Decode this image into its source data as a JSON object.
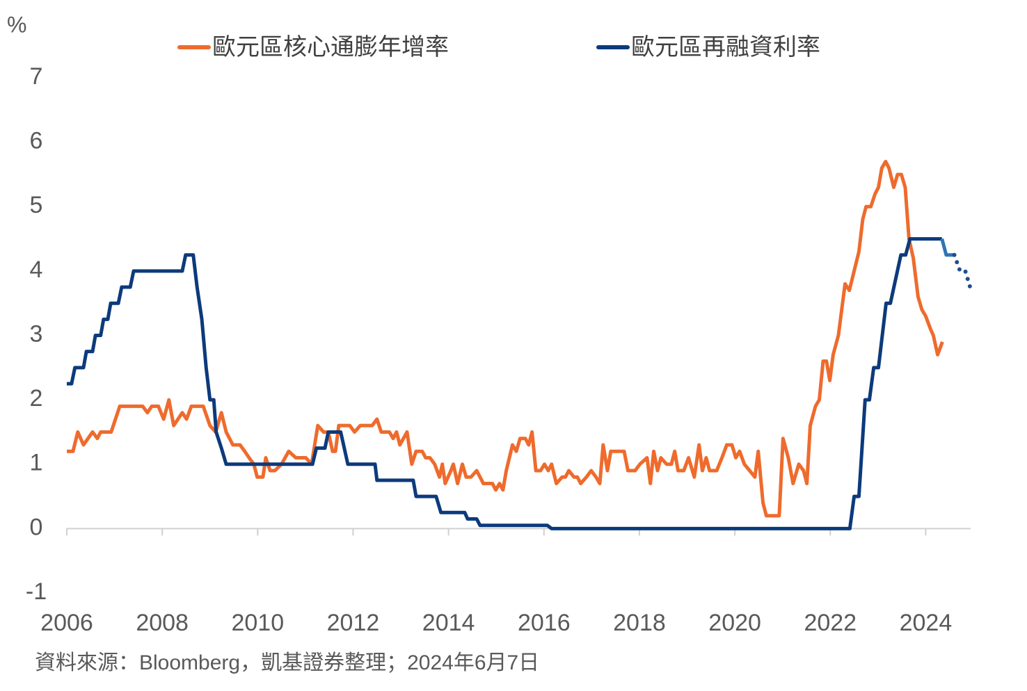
{
  "chart_data": {
    "type": "line",
    "y_unit": "%",
    "source": "資料來源：Bloomberg，凱基證券整理；2024年6月7日",
    "xlim": [
      2006,
      2025
    ],
    "xticks": [
      2006,
      2008,
      2010,
      2012,
      2014,
      2016,
      2018,
      2020,
      2022,
      2024
    ],
    "ylim": [
      -1,
      7
    ],
    "yticks": [
      -1,
      0,
      1,
      2,
      3,
      4,
      5,
      6,
      7
    ],
    "series": [
      {
        "name": "歐元區核心通膨年增率",
        "color": "#ee6b2d",
        "x": [
          2006.0,
          2006.13,
          2006.23,
          2006.35,
          2006.54,
          2006.64,
          2006.71,
          2006.93,
          2007.11,
          2007.59,
          2007.69,
          2007.78,
          2007.92,
          2008.03,
          2008.14,
          2008.24,
          2008.42,
          2008.51,
          2008.61,
          2008.86,
          2009.0,
          2009.12,
          2009.24,
          2009.34,
          2009.48,
          2009.63,
          2009.73,
          2009.82,
          2009.92,
          2009.99,
          2010.11,
          2010.17,
          2010.26,
          2010.36,
          2010.5,
          2010.65,
          2010.8,
          2011.01,
          2011.13,
          2011.26,
          2011.38,
          2011.48,
          2011.57,
          2011.63,
          2011.7,
          2011.93,
          2012.03,
          2012.15,
          2012.4,
          2012.5,
          2012.59,
          2012.76,
          2012.84,
          2012.91,
          2012.98,
          2013.13,
          2013.23,
          2013.32,
          2013.45,
          2013.52,
          2013.61,
          2013.71,
          2013.81,
          2013.87,
          2013.93,
          2014.05,
          2014.1,
          2014.19,
          2014.29,
          2014.37,
          2014.47,
          2014.59,
          2014.73,
          2014.92,
          2014.99,
          2015.07,
          2015.14,
          2015.21,
          2015.34,
          2015.42,
          2015.5,
          2015.61,
          2015.68,
          2015.75,
          2015.83,
          2015.93,
          2016.01,
          2016.09,
          2016.16,
          2016.26,
          2016.38,
          2016.45,
          2016.52,
          2016.63,
          2016.7,
          2016.77,
          2016.89,
          2016.99,
          2017.09,
          2017.17,
          2017.24,
          2017.33,
          2017.4,
          2017.68,
          2017.76,
          2017.91,
          2018.01,
          2018.16,
          2018.23,
          2018.3,
          2018.38,
          2018.45,
          2018.57,
          2018.67,
          2018.74,
          2018.81,
          2018.93,
          2019.03,
          2019.15,
          2019.25,
          2019.32,
          2019.4,
          2019.47,
          2019.62,
          2019.73,
          2019.83,
          2019.94,
          2020.02,
          2020.1,
          2020.2,
          2020.31,
          2020.42,
          2020.49,
          2020.59,
          2020.66,
          2020.93,
          2021.01,
          2021.12,
          2021.22,
          2021.34,
          2021.44,
          2021.51,
          2021.58,
          2021.69,
          2021.77,
          2021.85,
          2021.92,
          2021.99,
          2022.06,
          2022.17,
          2022.24,
          2022.31,
          2022.4,
          2022.5,
          2022.6,
          2022.68,
          2022.75,
          2022.85,
          2022.94,
          2023.01,
          2023.08,
          2023.16,
          2023.23,
          2023.33,
          2023.41,
          2023.49,
          2023.57,
          2023.65,
          2023.74,
          2023.84,
          2023.92,
          2024.0,
          2024.1,
          2024.16,
          2024.25,
          2024.35
        ],
        "values": [
          1.2,
          1.2,
          1.5,
          1.3,
          1.5,
          1.4,
          1.5,
          1.5,
          1.9,
          1.9,
          1.8,
          1.9,
          1.9,
          1.7,
          2.0,
          1.6,
          1.8,
          1.7,
          1.9,
          1.9,
          1.6,
          1.5,
          1.8,
          1.5,
          1.3,
          1.3,
          1.2,
          1.1,
          1.0,
          0.8,
          0.8,
          1.1,
          0.9,
          0.9,
          1.0,
          1.2,
          1.1,
          1.1,
          1.0,
          1.6,
          1.5,
          1.5,
          1.2,
          1.2,
          1.6,
          1.6,
          1.5,
          1.6,
          1.6,
          1.7,
          1.5,
          1.5,
          1.4,
          1.5,
          1.3,
          1.5,
          1.0,
          1.2,
          1.2,
          1.1,
          1.1,
          1.0,
          0.8,
          1.0,
          0.7,
          0.9,
          1.0,
          0.7,
          1.0,
          0.8,
          0.8,
          0.9,
          0.7,
          0.7,
          0.6,
          0.7,
          0.6,
          0.9,
          1.3,
          1.2,
          1.4,
          1.4,
          1.3,
          1.5,
          0.9,
          0.9,
          1.0,
          0.9,
          1.0,
          0.7,
          0.8,
          0.8,
          0.9,
          0.8,
          0.8,
          0.7,
          0.8,
          0.9,
          0.8,
          0.7,
          1.3,
          0.9,
          1.2,
          1.2,
          0.9,
          0.9,
          1.0,
          1.1,
          0.7,
          1.2,
          0.9,
          1.1,
          1.0,
          1.0,
          1.2,
          0.9,
          0.9,
          1.1,
          0.8,
          1.3,
          0.9,
          1.1,
          0.9,
          0.9,
          1.1,
          1.3,
          1.3,
          1.1,
          1.2,
          1.0,
          0.9,
          0.8,
          1.2,
          0.4,
          0.2,
          0.2,
          1.4,
          1.1,
          0.7,
          1.0,
          0.9,
          0.7,
          1.6,
          1.9,
          2.0,
          2.6,
          2.6,
          2.3,
          2.7,
          3.0,
          3.4,
          3.8,
          3.7,
          4.0,
          4.3,
          4.8,
          5.0,
          5.0,
          5.2,
          5.3,
          5.6,
          5.7,
          5.6,
          5.3,
          5.5,
          5.5,
          5.3,
          4.5,
          4.2,
          3.6,
          3.4,
          3.3,
          3.1,
          3.0,
          2.7,
          2.9
        ]
      },
      {
        "name": "歐元區再融資利率",
        "color": "#0c3a7c",
        "x": [
          2006.0,
          2006.1,
          2006.17,
          2006.35,
          2006.41,
          2006.54,
          2006.6,
          2006.71,
          2006.77,
          2006.86,
          2006.92,
          2007.08,
          2007.15,
          2007.33,
          2007.4,
          2008.42,
          2008.49,
          2008.65,
          2008.73,
          2008.83,
          2008.92,
          2009.0,
          2009.08,
          2009.13,
          2009.24,
          2009.34,
          2011.15,
          2011.23,
          2011.41,
          2011.48,
          2011.74,
          2011.89,
          2012.46,
          2012.5,
          2013.26,
          2013.32,
          2013.74,
          2013.84,
          2014.34,
          2014.4,
          2014.59,
          2014.66,
          2016.07,
          2016.16,
          2022.41,
          2022.5,
          2022.6,
          2022.73,
          2022.82,
          2022.91,
          2023.01,
          2023.17,
          2023.26,
          2023.48,
          2023.58,
          2023.67,
          2024.34
        ],
        "values": [
          2.25,
          2.25,
          2.5,
          2.5,
          2.75,
          2.75,
          3.0,
          3.0,
          3.25,
          3.25,
          3.5,
          3.5,
          3.75,
          3.75,
          4.0,
          4.0,
          4.25,
          4.25,
          3.75,
          3.25,
          2.5,
          2.0,
          2.0,
          1.5,
          1.25,
          1.0,
          1.0,
          1.25,
          1.25,
          1.5,
          1.5,
          1.0,
          1.0,
          0.75,
          0.75,
          0.5,
          0.5,
          0.25,
          0.25,
          0.15,
          0.15,
          0.05,
          0.05,
          0,
          0,
          0.5,
          0.5,
          2.0,
          2.0,
          2.5,
          2.5,
          3.5,
          3.5,
          4.25,
          4.25,
          4.5,
          4.5
        ]
      },
      {
        "color": "#2e75b6",
        "x": [
          2024.34,
          2024.43,
          2024.6
        ],
        "values": [
          4.5,
          4.25,
          4.25
        ]
      },
      {
        "color": "#1f4e8c",
        "style": "dotted",
        "x": [
          2024.6,
          2024.72,
          2024.83,
          2024.93
        ],
        "values": [
          4.25,
          4.0,
          4.0,
          3.75
        ]
      }
    ]
  }
}
